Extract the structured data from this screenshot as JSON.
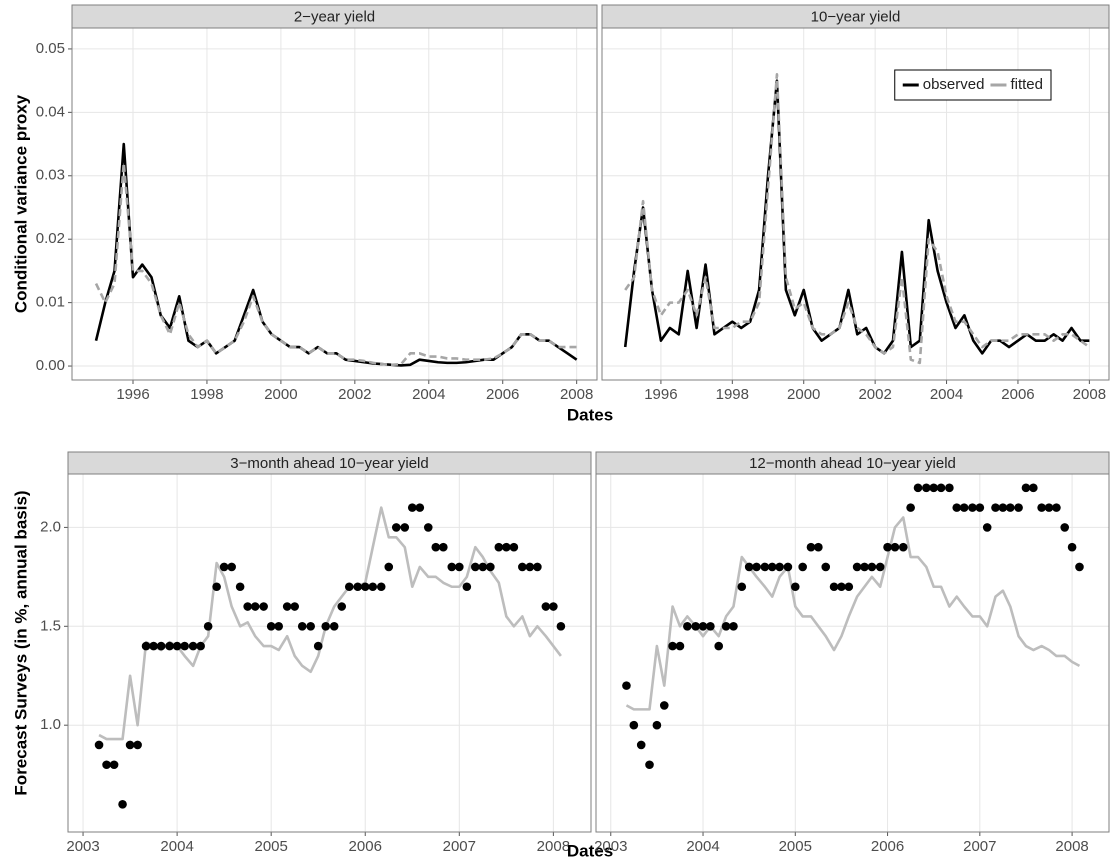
{
  "chart_data": [
    {
      "type": "line",
      "title": "2−year yield",
      "ylabel": "Conditional variance proxy",
      "xlabel": "Dates",
      "xlim": [
        1994.35,
        2008.55
      ],
      "xticks": [
        1996,
        1998,
        2000,
        2002,
        2004,
        2006,
        2008
      ],
      "ylim": [
        -0.0022,
        0.0533
      ],
      "yticks": [
        {
          "value": 0,
          "label": "0.00"
        },
        {
          "value": 0.01,
          "label": "0.01"
        },
        {
          "value": 0.02,
          "label": "0.02"
        },
        {
          "value": 0.03,
          "label": "0.03"
        },
        {
          "value": 0.04,
          "label": "0.04"
        },
        {
          "value": 0.05,
          "label": "0.05"
        }
      ],
      "grid": true,
      "x": [
        1995,
        1995.25,
        1995.5,
        1995.75,
        1996,
        1996.25,
        1996.5,
        1996.75,
        1997,
        1997.25,
        1997.5,
        1997.75,
        1998,
        1998.25,
        1998.5,
        1998.75,
        1999,
        1999.25,
        1999.5,
        1999.75,
        2000,
        2000.25,
        2000.5,
        2000.75,
        2001,
        2001.25,
        2001.5,
        2001.75,
        2002,
        2002.25,
        2002.5,
        2002.75,
        2003,
        2003.25,
        2003.5,
        2003.75,
        2004,
        2004.25,
        2004.5,
        2004.75,
        2005,
        2005.25,
        2005.5,
        2005.75,
        2006,
        2006.25,
        2006.5,
        2006.75,
        2007,
        2007.25,
        2007.5,
        2007.75,
        2008
      ],
      "series": [
        {
          "type": "line",
          "color": "#000000",
          "values": [
            0.004,
            0.01,
            0.015,
            0.035,
            0.014,
            0.016,
            0.014,
            0.008,
            0.006,
            0.011,
            0.004,
            0.003,
            0.004,
            0.002,
            0.003,
            0.004,
            0.008,
            0.012,
            0.007,
            0.005,
            0.004,
            0.003,
            0.003,
            0.002,
            0.003,
            0.002,
            0.002,
            0.001,
            0.0008,
            0.0006,
            0.0004,
            0.0003,
            0.0002,
            0.0001,
            0.0002,
            0.001,
            0.0008,
            0.0006,
            0.0005,
            0.0005,
            0.0006,
            0.0008,
            0.001,
            0.001,
            0.002,
            0.003,
            0.005,
            0.005,
            0.004,
            0.004,
            0.003,
            0.002,
            0.001
          ]
        },
        {
          "type": "line",
          "color": "#a6a6a6",
          "linestyle": "dashed",
          "values": [
            0.013,
            0.01,
            0.013,
            0.032,
            0.015,
            0.015,
            0.013,
            0.008,
            0.005,
            0.01,
            0.005,
            0.003,
            0.004,
            0.002,
            0.003,
            0.004,
            0.007,
            0.011,
            0.007,
            0.005,
            0.004,
            0.003,
            0.003,
            0.002,
            0.003,
            0.002,
            0.002,
            0.001,
            0.001,
            0.0008,
            0.0005,
            0.0003,
            0.0002,
            0.0003,
            0.002,
            0.002,
            0.0015,
            0.0015,
            0.0012,
            0.0012,
            0.001,
            0.001,
            0.001,
            0.0012,
            0.002,
            0.003,
            0.005,
            0.005,
            0.004,
            0.004,
            0.003,
            0.003,
            0.003
          ]
        }
      ]
    },
    {
      "type": "line",
      "title": "10−year yield",
      "sharey": true,
      "xlim": [
        1994.35,
        2008.55
      ],
      "xticks": [
        1996,
        1998,
        2000,
        2002,
        2004,
        2006,
        2008
      ],
      "ylim": [
        -0.0022,
        0.0533
      ],
      "yticks": [
        0,
        0.01,
        0.02,
        0.03,
        0.04,
        0.05
      ],
      "grid": true,
      "legend": "top-right",
      "x": [
        1995,
        1995.25,
        1995.5,
        1995.75,
        1996,
        1996.25,
        1996.5,
        1996.75,
        1997,
        1997.25,
        1997.5,
        1997.75,
        1998,
        1998.25,
        1998.5,
        1998.75,
        1999,
        1999.25,
        1999.5,
        1999.75,
        2000,
        2000.25,
        2000.5,
        2000.75,
        2001,
        2001.25,
        2001.5,
        2001.75,
        2002,
        2002.25,
        2002.5,
        2002.75,
        2003,
        2003.25,
        2003.5,
        2003.75,
        2004,
        2004.25,
        2004.5,
        2004.75,
        2005,
        2005.25,
        2005.5,
        2005.75,
        2006,
        2006.25,
        2006.5,
        2006.75,
        2007,
        2007.25,
        2007.5,
        2007.75,
        2008
      ],
      "series": [
        {
          "name": "observed",
          "type": "line",
          "color": "#000000",
          "values": [
            0.003,
            0.015,
            0.025,
            0.012,
            0.004,
            0.006,
            0.005,
            0.015,
            0.006,
            0.016,
            0.005,
            0.006,
            0.007,
            0.006,
            0.007,
            0.012,
            0.03,
            0.045,
            0.012,
            0.008,
            0.012,
            0.006,
            0.004,
            0.005,
            0.006,
            0.012,
            0.005,
            0.006,
            0.003,
            0.002,
            0.004,
            0.018,
            0.003,
            0.004,
            0.023,
            0.015,
            0.01,
            0.006,
            0.008,
            0.004,
            0.002,
            0.004,
            0.004,
            0.003,
            0.004,
            0.005,
            0.004,
            0.004,
            0.005,
            0.004,
            0.006,
            0.004,
            0.004
          ]
        },
        {
          "name": "fitted",
          "type": "line",
          "color": "#a6a6a6",
          "linestyle": "dashed",
          "values": [
            0.012,
            0.014,
            0.026,
            0.012,
            0.008,
            0.01,
            0.01,
            0.012,
            0.008,
            0.014,
            0.006,
            0.006,
            0.006,
            0.007,
            0.007,
            0.01,
            0.028,
            0.046,
            0.014,
            0.009,
            0.01,
            0.006,
            0.005,
            0.005,
            0.006,
            0.01,
            0.006,
            0.005,
            0.003,
            0.002,
            0.003,
            0.014,
            0.001,
            0.0005,
            0.02,
            0.018,
            0.011,
            0.007,
            0.007,
            0.005,
            0.003,
            0.004,
            0.004,
            0.004,
            0.005,
            0.005,
            0.005,
            0.005,
            0.004,
            0.005,
            0.005,
            0.004,
            0.003
          ]
        }
      ]
    },
    {
      "type": "line",
      "title": "3−month ahead 10−year yield",
      "ylabel": "Forecast Surveys (in %, annual basis)",
      "xlabel": "Dates",
      "xlim": [
        2002.84,
        2008.4
      ],
      "xticks": [
        2003,
        2004,
        2005,
        2006,
        2007,
        2008
      ],
      "ylim": [
        0.46,
        2.27
      ],
      "yticks": [
        {
          "value": 1,
          "label": "1.0"
        },
        {
          "value": 1.5,
          "label": "1.5"
        },
        {
          "value": 2,
          "label": "2.0"
        }
      ],
      "grid": true,
      "x": [
        2003.17,
        2003.25,
        2003.33,
        2003.42,
        2003.5,
        2003.58,
        2003.67,
        2003.75,
        2003.83,
        2003.92,
        2004,
        2004.08,
        2004.17,
        2004.25,
        2004.33,
        2004.42,
        2004.5,
        2004.58,
        2004.67,
        2004.75,
        2004.83,
        2004.92,
        2005,
        2005.08,
        2005.17,
        2005.25,
        2005.33,
        2005.42,
        2005.5,
        2005.58,
        2005.67,
        2005.75,
        2005.83,
        2005.92,
        2006,
        2006.08,
        2006.17,
        2006.25,
        2006.33,
        2006.42,
        2006.5,
        2006.58,
        2006.67,
        2006.75,
        2006.83,
        2006.92,
        2007,
        2007.08,
        2007.17,
        2007.25,
        2007.33,
        2007.42,
        2007.5,
        2007.58,
        2007.67,
        2007.75,
        2007.83,
        2007.92,
        2008,
        2008.08
      ],
      "series": [
        {
          "type": "line",
          "color": "#bdbdbd",
          "values": [
            0.95,
            0.93,
            0.93,
            0.93,
            1.25,
            1.0,
            1.42,
            1.4,
            1.38,
            1.42,
            1.4,
            1.35,
            1.3,
            1.4,
            1.45,
            1.82,
            1.75,
            1.6,
            1.5,
            1.52,
            1.45,
            1.4,
            1.4,
            1.38,
            1.45,
            1.35,
            1.3,
            1.27,
            1.35,
            1.5,
            1.6,
            1.65,
            1.7,
            1.7,
            1.72,
            1.9,
            2.1,
            1.95,
            1.95,
            1.9,
            1.7,
            1.8,
            1.75,
            1.75,
            1.72,
            1.7,
            1.7,
            1.75,
            1.9,
            1.85,
            1.78,
            1.72,
            1.55,
            1.5,
            1.55,
            1.45,
            1.5,
            1.45,
            1.4,
            1.35
          ]
        },
        {
          "type": "scatter",
          "color": "#000000",
          "values": [
            0.9,
            0.8,
            0.8,
            0.6,
            0.9,
            0.9,
            1.4,
            1.4,
            1.4,
            1.4,
            1.4,
            1.4,
            1.4,
            1.4,
            1.5,
            1.7,
            1.8,
            1.8,
            1.7,
            1.6,
            1.6,
            1.6,
            1.5,
            1.5,
            1.6,
            1.6,
            1.5,
            1.5,
            1.4,
            1.5,
            1.5,
            1.6,
            1.7,
            1.7,
            1.7,
            1.7,
            1.7,
            1.8,
            2.0,
            2.0,
            2.1,
            2.1,
            2.0,
            1.9,
            1.9,
            1.8,
            1.8,
            1.7,
            1.8,
            1.8,
            1.8,
            1.9,
            1.9,
            1.9,
            1.8,
            1.8,
            1.8,
            1.6,
            1.6,
            1.5
          ]
        }
      ]
    },
    {
      "type": "line",
      "title": "12−month ahead 10−year yield",
      "sharey": true,
      "xlim": [
        2002.84,
        2008.4
      ],
      "xticks": [
        2003,
        2004,
        2005,
        2006,
        2007,
        2008
      ],
      "ylim": [
        0.46,
        2.27
      ],
      "yticks": [
        1,
        1.5,
        2
      ],
      "grid": true,
      "x": [
        2003.17,
        2003.25,
        2003.33,
        2003.42,
        2003.5,
        2003.58,
        2003.67,
        2003.75,
        2003.83,
        2003.92,
        2004,
        2004.08,
        2004.17,
        2004.25,
        2004.33,
        2004.42,
        2004.5,
        2004.58,
        2004.67,
        2004.75,
        2004.83,
        2004.92,
        2005,
        2005.08,
        2005.17,
        2005.25,
        2005.33,
        2005.42,
        2005.5,
        2005.58,
        2005.67,
        2005.75,
        2005.83,
        2005.92,
        2006,
        2006.08,
        2006.17,
        2006.25,
        2006.33,
        2006.42,
        2006.5,
        2006.58,
        2006.67,
        2006.75,
        2006.83,
        2006.92,
        2007,
        2007.08,
        2007.17,
        2007.25,
        2007.33,
        2007.42,
        2007.5,
        2007.58,
        2007.67,
        2007.75,
        2007.83,
        2007.92,
        2008,
        2008.08
      ],
      "series": [
        {
          "type": "line",
          "color": "#bdbdbd",
          "values": [
            1.1,
            1.08,
            1.08,
            1.08,
            1.4,
            1.2,
            1.6,
            1.5,
            1.55,
            1.5,
            1.45,
            1.5,
            1.45,
            1.55,
            1.6,
            1.85,
            1.8,
            1.75,
            1.7,
            1.65,
            1.75,
            1.8,
            1.6,
            1.55,
            1.55,
            1.5,
            1.45,
            1.38,
            1.45,
            1.55,
            1.65,
            1.7,
            1.75,
            1.7,
            1.85,
            2.0,
            2.05,
            1.85,
            1.85,
            1.8,
            1.7,
            1.7,
            1.6,
            1.65,
            1.6,
            1.55,
            1.55,
            1.5,
            1.65,
            1.68,
            1.6,
            1.45,
            1.4,
            1.38,
            1.4,
            1.38,
            1.35,
            1.35,
            1.32,
            1.3
          ]
        },
        {
          "type": "scatter",
          "color": "#000000",
          "values": [
            1.2,
            1.0,
            0.9,
            0.8,
            1.0,
            1.1,
            1.4,
            1.4,
            1.5,
            1.5,
            1.5,
            1.5,
            1.4,
            1.5,
            1.5,
            1.7,
            1.8,
            1.8,
            1.8,
            1.8,
            1.8,
            1.8,
            1.7,
            1.8,
            1.9,
            1.9,
            1.8,
            1.7,
            1.7,
            1.7,
            1.8,
            1.8,
            1.8,
            1.8,
            1.9,
            1.9,
            1.9,
            2.1,
            2.2,
            2.2,
            2.2,
            2.2,
            2.2,
            2.1,
            2.1,
            2.1,
            2.1,
            2.0,
            2.1,
            2.1,
            2.1,
            2.1,
            2.2,
            2.2,
            2.1,
            2.1,
            2.1,
            2.0,
            1.9,
            1.8
          ]
        }
      ]
    }
  ]
}
